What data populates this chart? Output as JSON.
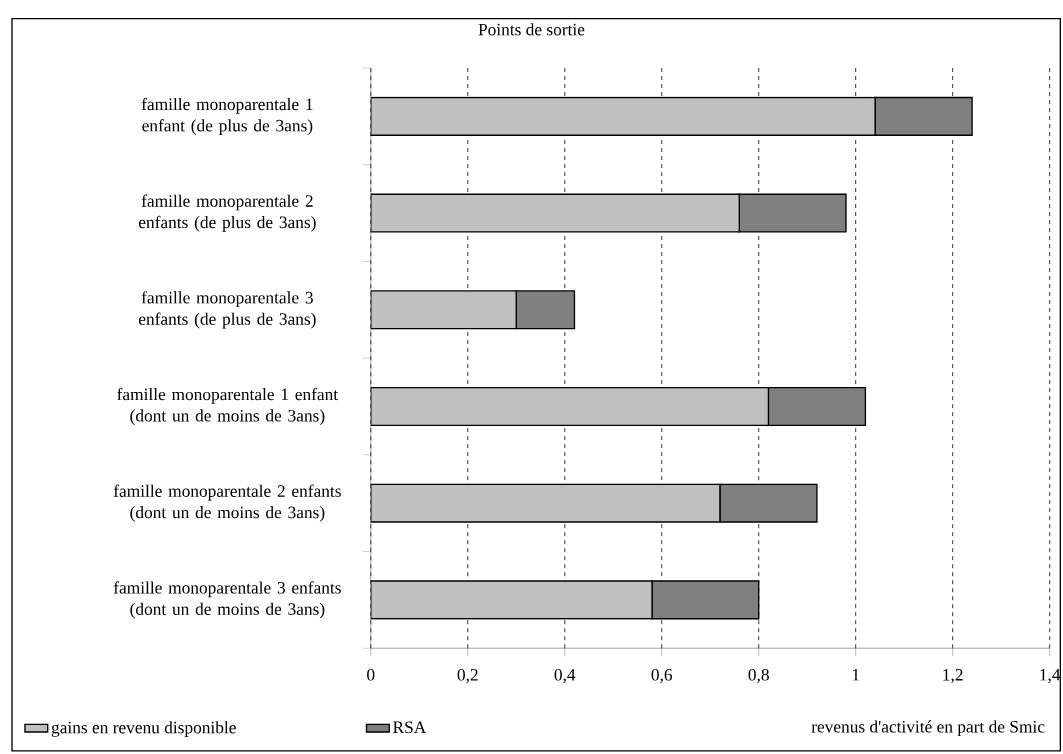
{
  "chart_data": {
    "type": "bar",
    "orientation": "horizontal",
    "stacked": true,
    "title": "Points de sortie",
    "xlabel": "revenus d'activité en part de Smic",
    "categories": [
      "famille monoparentale 1 enfant (de plus de 3ans)",
      "famille monoparentale 2 enfants (de plus de 3ans)",
      "famille monoparentale 3 enfants (de plus de 3ans)",
      "famille monoparentale 1 enfant (dont un de moins de 3ans)",
      "famille monoparentale 2 enfants (dont un de moins de 3ans)",
      "famille monoparentale 3 enfants (dont un de moins de 3ans)"
    ],
    "series": [
      {
        "name": "gains en revenu disponible",
        "color": "#c0c0c0",
        "values": [
          1.04,
          0.76,
          0.3,
          0.82,
          0.72,
          0.58
        ]
      },
      {
        "name": "RSA",
        "color": "#808080",
        "values": [
          0.2,
          0.22,
          0.12,
          0.2,
          0.2,
          0.22
        ]
      }
    ],
    "xlim": [
      0,
      1.4
    ],
    "xticks": [
      0,
      {
        "value": 0.2,
        "label": "0,2"
      },
      {
        "value": 0.4,
        "label": "0,4"
      },
      {
        "value": 0.6,
        "label": "0,6"
      },
      {
        "value": 0.8,
        "label": "0,8"
      },
      1,
      {
        "value": 1.2,
        "label": "1,2"
      },
      {
        "value": 1.4,
        "label": "1,4"
      }
    ],
    "grid": "x",
    "legend": "bottom left"
  }
}
